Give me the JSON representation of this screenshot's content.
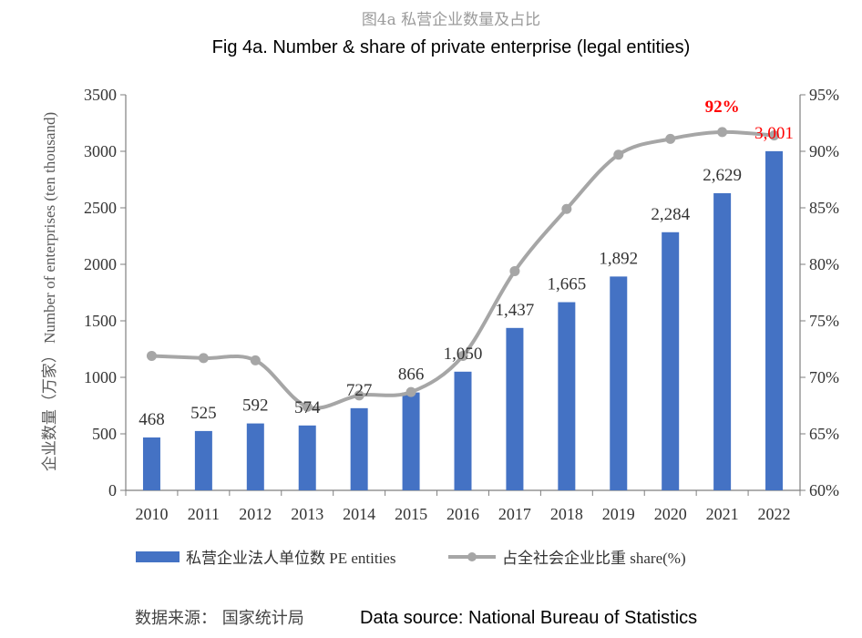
{
  "header": {
    "title_cn": "图4a 私营企业数量及占比",
    "title_en": "Fig 4a. Number & share of private enterprise (legal entities)"
  },
  "footer": {
    "source_cn": "数据来源： 国家统计局",
    "source_en": "Data source: National Bureau of Statistics"
  },
  "colors": {
    "bar": "#4472C4",
    "line": "#A6A6A6",
    "highlight": "#FF0000",
    "text": "#333333",
    "axis_title": "#595959"
  },
  "chart_data": {
    "type": "bar",
    "title": "Fig 4a. Number & share of private enterprise (legal entities)",
    "categories": [
      "2010",
      "2011",
      "2012",
      "2013",
      "2014",
      "2015",
      "2016",
      "2017",
      "2018",
      "2019",
      "2020",
      "2021",
      "2022"
    ],
    "series": [
      {
        "name": "私营企业法人单位数 PE entities",
        "type": "bar",
        "axis": "left",
        "values": [
          468,
          525,
          592,
          574,
          727,
          866,
          1050,
          1437,
          1665,
          1892,
          2284,
          2629,
          3001
        ],
        "labels": [
          "468",
          "525",
          "592",
          "574",
          "727",
          "866",
          "1,050",
          "1,437",
          "1,665",
          "1,892",
          "2,284",
          "2,629",
          "3,001"
        ]
      },
      {
        "name": "占全社会企业比重 share(%)",
        "type": "line",
        "axis": "right",
        "smooth": true,
        "values": [
          71.9,
          71.7,
          71.5,
          67.4,
          68.4,
          68.7,
          71.9,
          79.4,
          84.9,
          89.7,
          91.1,
          91.7,
          91.4
        ]
      }
    ],
    "annotation": {
      "text": "92%",
      "category": "2021",
      "series": "share(%)"
    },
    "ylabel_left": "企业数量（万家） Number of enterprises (ten thousand)",
    "ylim_left": [
      0,
      3500
    ],
    "yticks_left": [
      "0",
      "500",
      "1000",
      "1500",
      "2000",
      "2500",
      "3000",
      "3500"
    ],
    "ylim_right": [
      60,
      95
    ],
    "yticks_right": [
      "60%",
      "65%",
      "70%",
      "75%",
      "80%",
      "85%",
      "90%",
      "95%"
    ],
    "grid": false,
    "legend_position": "bottom"
  }
}
